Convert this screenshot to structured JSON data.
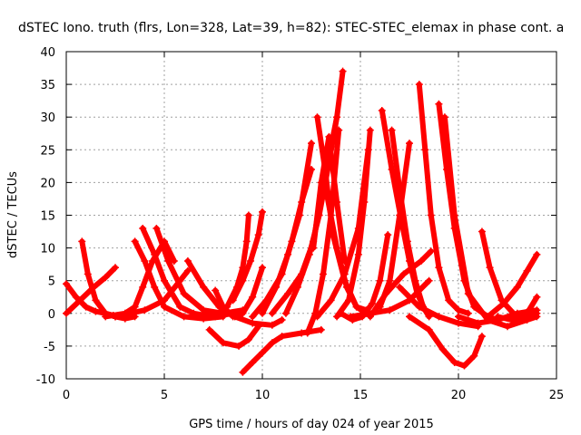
{
  "chart_data": {
    "type": "line",
    "title": "dSTEC Iono. truth (flrs, Lon=328, Lat=39, h=82): STEC-STEC_elemax in phase cont. a",
    "xlabel": "GPS time / hours of day 024 of year 2015",
    "ylabel": "dSTEC  / TECUs",
    "xlim": [
      0,
      25
    ],
    "ylim": [
      -10,
      40
    ],
    "x_ticks": [
      0,
      5,
      10,
      15,
      20,
      25
    ],
    "y_ticks": [
      -10,
      -5,
      0,
      5,
      10,
      15,
      20,
      25,
      30,
      35,
      40
    ],
    "grid": true,
    "marker": "plus",
    "series_color": "#ff0000",
    "series": [
      {
        "x": [
          0,
          0.5,
          1,
          1.5,
          2.0,
          2.4
        ],
        "y": [
          4.5,
          2.5,
          1.0,
          0.3,
          0.0,
          -0.3
        ]
      },
      {
        "x": [
          0.8,
          1.1,
          1.5,
          2.0,
          2.5,
          3.0,
          3.5
        ],
        "y": [
          11,
          6,
          2,
          0,
          -0.5,
          -0.8,
          -0.5
        ]
      },
      {
        "x": [
          0,
          0.7,
          1.4,
          2.0,
          2.5
        ],
        "y": [
          0,
          2,
          4,
          5.5,
          7
        ]
      },
      {
        "x": [
          2.0,
          3.0,
          3.5,
          3.9,
          4.4,
          5.0,
          5.5
        ],
        "y": [
          -0.5,
          0,
          1,
          4,
          8,
          11,
          8
        ]
      },
      {
        "x": [
          3.5,
          4.0,
          4.5,
          5.0,
          6.0,
          7.0,
          8.0
        ],
        "y": [
          11,
          8,
          4,
          1,
          -0.5,
          -0.8,
          -0.5
        ]
      },
      {
        "x": [
          3.9,
          4.5,
          5.0,
          5.8,
          6.5,
          7.5,
          8.5
        ],
        "y": [
          13,
          9,
          5,
          1,
          0,
          -0.5,
          0
        ]
      },
      {
        "x": [
          4.6,
          5.2,
          6.0,
          7.0,
          8.0,
          9.0
        ],
        "y": [
          13,
          8,
          3,
          0.5,
          0,
          0.5
        ]
      },
      {
        "x": [
          2.5,
          4.0,
          5.0,
          5.8,
          6.2
        ],
        "y": [
          -0.5,
          0.5,
          2,
          5,
          6.5
        ]
      },
      {
        "x": [
          6.2,
          7.0,
          7.8,
          8.6,
          9.5,
          10.5,
          11.0
        ],
        "y": [
          8,
          4,
          1,
          -0.5,
          -1.5,
          -1.8,
          -1.0
        ]
      },
      {
        "x": [
          7.6,
          8.0,
          8.5,
          9.0,
          9.5,
          10.0
        ],
        "y": [
          3.5,
          1,
          -0.5,
          0,
          2.5,
          7
        ]
      },
      {
        "x": [
          7.3,
          8.0,
          8.8,
          9.3,
          9.8
        ],
        "y": [
          -2.5,
          -4.5,
          -5,
          -4,
          -2
        ]
      },
      {
        "x": [
          7.6,
          8.2,
          8.7,
          9.0,
          9.2,
          9.3
        ],
        "y": [
          -0.5,
          1,
          4,
          7,
          11,
          15
        ]
      },
      {
        "x": [
          9.0,
          9.5,
          10.0,
          10.5,
          11.0,
          12.0,
          13.0
        ],
        "y": [
          -9,
          -7.5,
          -6,
          -4.5,
          -3.5,
          -3,
          -2.5
        ]
      },
      {
        "x": [
          8.5,
          9.0,
          9.4,
          9.8,
          10.0
        ],
        "y": [
          2,
          5,
          8,
          12,
          15.5
        ]
      },
      {
        "x": [
          9.5,
          10.2,
          11.0,
          11.5,
          12.0,
          12.5
        ],
        "y": [
          -0.5,
          2,
          6,
          11,
          17,
          22
        ]
      },
      {
        "x": [
          10.0,
          10.7,
          11.3,
          11.9,
          12.5
        ],
        "y": [
          0,
          4,
          9,
          15,
          26
        ]
      },
      {
        "x": [
          10.5,
          11.3,
          12.0,
          12.6,
          13.0,
          13.4,
          13.8,
          14.1
        ],
        "y": [
          0,
          3,
          6,
          11,
          18,
          24,
          30,
          37
        ]
      },
      {
        "x": [
          11.2,
          11.8,
          12.4,
          12.9,
          13.4,
          13.8
        ],
        "y": [
          0,
          4,
          9,
          15,
          23,
          30
        ]
      },
      {
        "x": [
          12.3,
          12.7,
          13.1,
          13.5,
          13.9
        ],
        "y": [
          -3,
          0,
          6,
          15,
          28
        ]
      },
      {
        "x": [
          12.6,
          13.0,
          13.4,
          13.8,
          14.2
        ],
        "y": [
          10,
          20,
          27,
          17,
          8
        ]
      },
      {
        "x": [
          12.8,
          13.2,
          13.6,
          14.2,
          14.8,
          15.3
        ],
        "y": [
          30,
          22,
          12,
          5,
          1,
          0
        ]
      },
      {
        "x": [
          13.3,
          13.8,
          14.3,
          14.8,
          15.3
        ],
        "y": [
          18,
          10,
          4,
          1,
          0.5
        ]
      },
      {
        "x": [
          12.8,
          13.5,
          14.2,
          14.9,
          15.4
        ],
        "y": [
          -0.5,
          2,
          6,
          13,
          25
        ]
      },
      {
        "x": [
          13.8,
          14.4,
          14.9,
          15.2,
          15.5
        ],
        "y": [
          -0.5,
          2,
          9,
          17,
          28
        ]
      },
      {
        "x": [
          14.0,
          14.6,
          15.1,
          15.6,
          16.0,
          16.4
        ],
        "y": [
          0,
          -1,
          -0.5,
          1.5,
          5,
          12
        ]
      },
      {
        "x": [
          14.5,
          15.5,
          16.5,
          17.5,
          18.5
        ],
        "y": [
          -0.5,
          0,
          0.5,
          2,
          5
        ]
      },
      {
        "x": [
          15.5,
          16.3,
          17.2,
          18.1,
          18.6
        ],
        "y": [
          -0.5,
          3,
          6,
          8,
          9.5
        ]
      },
      {
        "x": [
          16.1,
          16.6,
          17.1,
          17.5,
          17.9,
          18.3
        ],
        "y": [
          31,
          22,
          14,
          8,
          3,
          0.5
        ]
      },
      {
        "x": [
          16.6,
          17.0,
          17.4,
          17.8,
          18.2,
          18.5
        ],
        "y": [
          28,
          19,
          11,
          5,
          1,
          -0.5
        ]
      },
      {
        "x": [
          16.0,
          16.5,
          17.0,
          17.5
        ],
        "y": [
          1,
          5,
          15,
          26
        ]
      },
      {
        "x": [
          18.0,
          18.3,
          18.6,
          19.0,
          19.5,
          20.0,
          20.5
        ],
        "y": [
          35,
          25,
          15,
          7,
          2,
          0.5,
          0
        ]
      },
      {
        "x": [
          17.0,
          18.0,
          19.0,
          20.0,
          21.0
        ],
        "y": [
          4,
          1,
          -0.5,
          -1.5,
          -2
        ]
      },
      {
        "x": [
          17.5,
          18.5,
          19.2,
          19.8,
          20.3,
          20.8,
          21.2
        ],
        "y": [
          -0.5,
          -2.5,
          -5.5,
          -7.5,
          -8,
          -6.5,
          -3.5
        ]
      },
      {
        "x": [
          19.0,
          19.4,
          19.8,
          20.3,
          20.8,
          21.5,
          22.0
        ],
        "y": [
          32,
          22,
          13,
          5,
          1,
          -0.5,
          -1
        ]
      },
      {
        "x": [
          19.3,
          19.8,
          20.5,
          21.5,
          22.5,
          23.5,
          24.0
        ],
        "y": [
          30,
          15,
          3,
          -1,
          -2,
          -1,
          -0.5
        ]
      },
      {
        "x": [
          21.2,
          21.6,
          22.2,
          22.8,
          23.5,
          24.0
        ],
        "y": [
          12.5,
          7,
          2,
          0,
          -0.5,
          0
        ]
      },
      {
        "x": [
          20.0,
          21.0,
          22.0,
          23.0,
          24.0
        ],
        "y": [
          -0.5,
          -1.5,
          -1,
          0,
          0.5
        ]
      },
      {
        "x": [
          21.5,
          22.3,
          23.0,
          23.5,
          24.0
        ],
        "y": [
          -0.5,
          1.5,
          4,
          6.5,
          9
        ]
      },
      {
        "x": [
          22.0,
          22.7,
          23.2,
          23.6,
          24.0
        ],
        "y": [
          -0.5,
          -1,
          -0.5,
          0.5,
          2.5
        ]
      }
    ]
  }
}
